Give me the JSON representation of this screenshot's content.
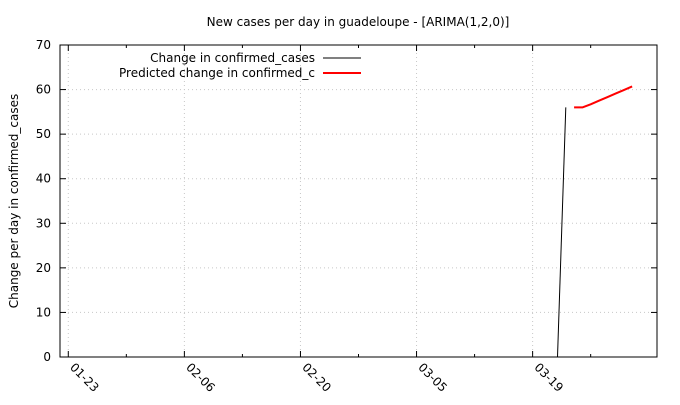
{
  "chart_data": {
    "type": "line",
    "title": "New cases per day in guadeloupe -  [ARIMA(1,2,0)]",
    "xlabel": "",
    "ylabel": "Change per day in confirmed_cases",
    "x_type": "date",
    "xlim": [
      "2020-01-22",
      "2020-04-03"
    ],
    "ylim": [
      0,
      70
    ],
    "x_ticks": [
      {
        "date": "2020-01-23",
        "label": "01-23"
      },
      {
        "date": "2020-02-06",
        "label": "02-06"
      },
      {
        "date": "2020-02-20",
        "label": "02-20"
      },
      {
        "date": "2020-03-05",
        "label": "03-05"
      },
      {
        "date": "2020-03-19",
        "label": "03-19"
      }
    ],
    "y_ticks": [
      0,
      10,
      20,
      30,
      40,
      50,
      60,
      70
    ],
    "grid": true,
    "legend_position": "top-left",
    "series": [
      {
        "name": "Change in confirmed_cases",
        "color": "#000000",
        "points": [
          {
            "x": "2020-03-22",
            "y": 0
          },
          {
            "x": "2020-03-23",
            "y": 56
          }
        ]
      },
      {
        "name": "Predicted change in confirmed_c",
        "color": "#ff0000",
        "points": [
          {
            "x": "2020-03-24",
            "y": 56
          },
          {
            "x": "2020-03-25",
            "y": 56
          },
          {
            "x": "2020-03-26",
            "y": 56.7
          },
          {
            "x": "2020-03-27",
            "y": 57.5
          },
          {
            "x": "2020-03-28",
            "y": 58.3
          },
          {
            "x": "2020-03-29",
            "y": 59.1
          },
          {
            "x": "2020-03-30",
            "y": 59.9
          },
          {
            "x": "2020-03-31",
            "y": 60.7
          }
        ]
      }
    ]
  }
}
